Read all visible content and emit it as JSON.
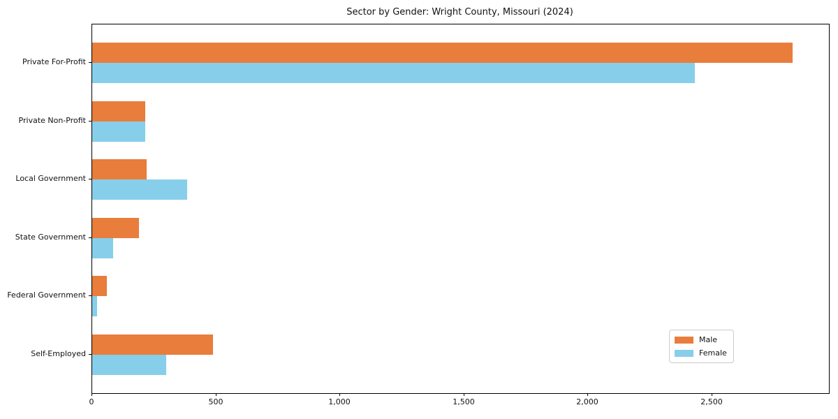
{
  "chart_data": {
    "type": "bar",
    "orientation": "horizontal",
    "title": "Sector by Gender: Wright County, Missouri (2024)",
    "categories": [
      "Private For-Profit",
      "Private Non-Profit",
      "Local Government",
      "State Government",
      "Federal Government",
      "Self-Employed"
    ],
    "series": [
      {
        "name": "Male",
        "color": "#e87d3c",
        "values": [
          2825,
          214,
          220,
          188,
          60,
          487
        ]
      },
      {
        "name": "Female",
        "color": "#87ceeb",
        "values": [
          2430,
          215,
          383,
          85,
          21,
          298
        ]
      }
    ],
    "xlabel": "",
    "ylabel": "",
    "xlim": [
      0,
      2970
    ],
    "xticks": {
      "values": [
        0,
        500,
        1000,
        1500,
        2000,
        2500
      ],
      "labels": [
        "0",
        "500",
        "1,000",
        "1,500",
        "2,000",
        "2,500"
      ]
    },
    "grid": false,
    "legend": {
      "position": "lower right",
      "entries": [
        "Male",
        "Female"
      ]
    }
  },
  "colors": {
    "male_bar": "#e87d3c",
    "female_bar": "#87ceeb",
    "spine": "#000000",
    "legend_border": "#cccccc",
    "background": "#ffffff",
    "text": "#111111"
  }
}
